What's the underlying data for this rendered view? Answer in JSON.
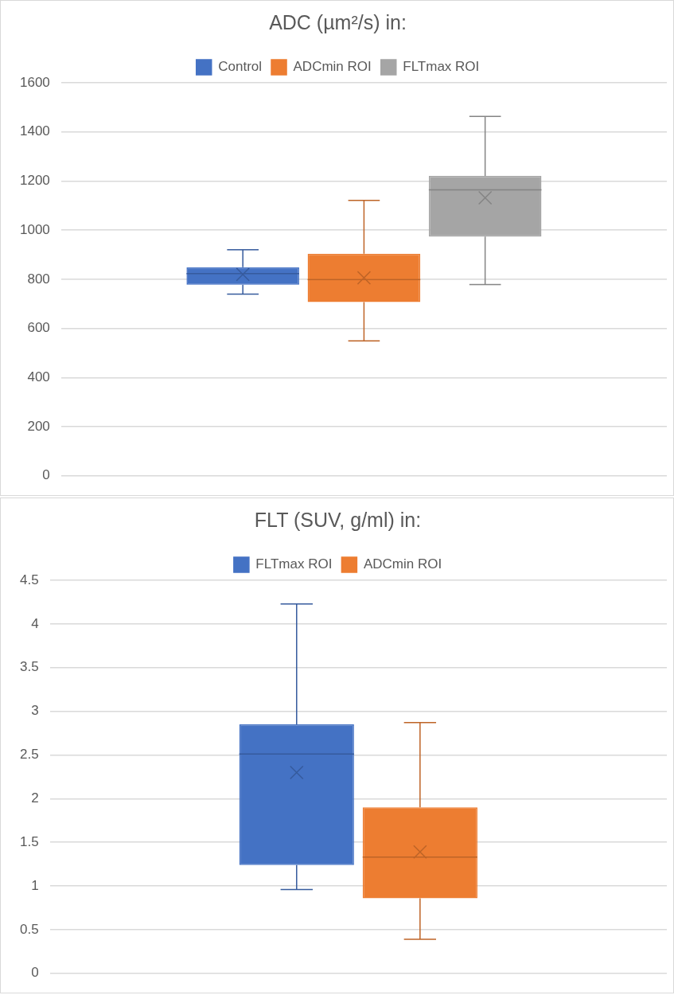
{
  "chart_data": [
    {
      "type": "box",
      "title": "ADC (µm²/s) in:",
      "categories": [
        null
      ],
      "legend": "top",
      "grid": "y",
      "tick_labels": "y",
      "ylim": [
        0,
        1600
      ],
      "yticks": [
        0,
        200,
        400,
        600,
        800,
        1000,
        1200,
        1400,
        1600
      ],
      "series": [
        {
          "name": "Control",
          "color": "#4472c4",
          "boxes": [
            {
              "low": 740,
              "q1": 778,
              "median": 823,
              "q3": 849,
              "high": 920,
              "mean": 820
            }
          ]
        },
        {
          "name": "ADCmin ROI",
          "color": "#ed7d31",
          "boxes": [
            {
              "low": 549,
              "q1": 707,
              "median": 799,
              "q3": 904,
              "high": 1121,
              "mean": 806
            }
          ]
        },
        {
          "name": "FLTmax ROI",
          "color": "#a5a5a5",
          "boxes": [
            {
              "low": 779,
              "q1": 974,
              "median": 1164,
              "q3": 1221,
              "high": 1463,
              "mean": 1132
            }
          ]
        }
      ]
    },
    {
      "type": "box",
      "title": "FLT (SUV, g/ml) in:",
      "categories": [
        null
      ],
      "legend": "top",
      "grid": "y",
      "tick_labels": "y",
      "ylim": [
        0,
        4.5
      ],
      "yticks": [
        0,
        0.5,
        1,
        1.5,
        2,
        2.5,
        3,
        3.5,
        4,
        4.5
      ],
      "series": [
        {
          "name": "FLTmax ROI",
          "color": "#4472c4",
          "boxes": [
            {
              "low": 0.96,
              "q1": 1.24,
              "median": 2.51,
              "q3": 2.85,
              "high": 4.23,
              "mean": 2.3
            }
          ]
        },
        {
          "name": "ADCmin ROI",
          "color": "#ed7d31",
          "boxes": [
            {
              "low": 0.39,
              "q1": 0.86,
              "median": 1.33,
              "q3": 1.9,
              "high": 2.87,
              "mean": 1.39
            }
          ]
        }
      ]
    }
  ]
}
